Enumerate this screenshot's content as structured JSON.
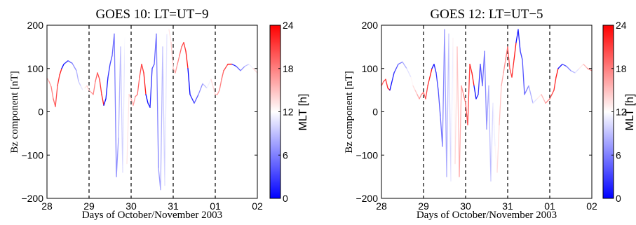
{
  "colors": {
    "low": "#0000ff",
    "mid": "#ffffff",
    "high": "#ff0000",
    "axis": "#000000"
  },
  "chart_data": [
    {
      "type": "line",
      "title": "GOES 10: LT=UT−9",
      "xlabel": "Days of October/November 2003",
      "ylabel": "Bz component [nT]",
      "xlim": [
        "2003-10-28",
        "2003-11-02"
      ],
      "ylim": [
        -200,
        200
      ],
      "xticks": [
        "28",
        "29",
        "30",
        "31",
        "01",
        "02"
      ],
      "yticks": [
        "−200",
        "−100",
        "0",
        "100",
        "200"
      ],
      "ytick_values": [
        -200,
        -100,
        0,
        100,
        200
      ],
      "vlines_dashed": [
        "2003-10-29",
        "2003-10-30",
        "2003-10-31",
        "2003-11-01"
      ],
      "color_by": "MLT",
      "colorbar": {
        "label": "MLT [h]",
        "range": [
          0,
          24
        ],
        "ticks": [
          "0",
          "6",
          "12",
          "18",
          "24"
        ],
        "tick_values": [
          0,
          6,
          12,
          18,
          24
        ]
      },
      "lt_offset_hours": -9,
      "grid": false,
      "series": [
        {
          "x_days": [
            0,
            0.05,
            0.1,
            0.15,
            0.2,
            0.25,
            0.3,
            0.35,
            0.4,
            0.5,
            0.6,
            0.7,
            0.75,
            0.8,
            0.85,
            0.9,
            0.95,
            1.0,
            1.05,
            1.1,
            1.15,
            1.2,
            1.25,
            1.3,
            1.35,
            1.4,
            1.45,
            1.5,
            1.55,
            1.6,
            1.65,
            1.7,
            1.75,
            1.8,
            1.85,
            1.9,
            1.95,
            2.0,
            2.05,
            2.1,
            2.15,
            2.2,
            2.25,
            2.3,
            2.35,
            2.4,
            2.45,
            2.5,
            2.55,
            2.6,
            2.65,
            2.7,
            2.75,
            2.8,
            2.85,
            2.9,
            2.95,
            3.0,
            3.05,
            3.1,
            3.15,
            3.2,
            3.25,
            3.3,
            3.35,
            3.4,
            3.5,
            3.6,
            3.7,
            3.8,
            3.9,
            4.0,
            4.05,
            4.1,
            4.15,
            4.2,
            4.3,
            4.4,
            4.5,
            4.6,
            4.7,
            4.8,
            4.9,
            5.0
          ],
          "y": [
            78,
            70,
            58,
            30,
            12,
            60,
            85,
            100,
            110,
            118,
            112,
            95,
            70,
            60,
            50,
            55,
            60,
            50,
            45,
            40,
            70,
            90,
            75,
            40,
            15,
            30,
            80,
            110,
            130,
            180,
            -150,
            -60,
            150,
            -140,
            170,
            -120,
            40,
            30,
            15,
            35,
            40,
            80,
            110,
            90,
            40,
            20,
            10,
            100,
            110,
            180,
            -130,
            -180,
            150,
            -170,
            180,
            190,
            160,
            100,
            90,
            110,
            130,
            150,
            160,
            140,
            100,
            40,
            20,
            40,
            65,
            55,
            75,
            40,
            40,
            50,
            75,
            95,
            110,
            110,
            105,
            95,
            105,
            110,
            100,
            90
          ]
        }
      ]
    },
    {
      "type": "line",
      "title": "GOES 12: LT=UT−5",
      "xlabel": "Days of October/November 2003",
      "ylabel": "Bz component [nT]",
      "xlim": [
        "2003-10-28",
        "2003-11-02"
      ],
      "ylim": [
        -200,
        200
      ],
      "xticks": [
        "28",
        "29",
        "30",
        "31",
        "01",
        "02"
      ],
      "yticks": [
        "−200",
        "−100",
        "0",
        "100",
        "200"
      ],
      "ytick_values": [
        -200,
        -100,
        0,
        100,
        200
      ],
      "vlines_dashed": [
        "2003-10-29",
        "2003-10-30",
        "2003-10-31",
        "2003-11-01"
      ],
      "color_by": "MLT",
      "colorbar": {
        "label": "MLT [h]",
        "range": [
          0,
          24
        ],
        "ticks": [
          "0",
          "6",
          "12",
          "18",
          "24"
        ],
        "tick_values": [
          0,
          6,
          12,
          18,
          24
        ]
      },
      "lt_offset_hours": -5,
      "grid": false,
      "series": [
        {
          "x_days": [
            0,
            0.05,
            0.1,
            0.15,
            0.2,
            0.25,
            0.3,
            0.35,
            0.4,
            0.5,
            0.6,
            0.7,
            0.75,
            0.8,
            0.85,
            0.9,
            0.95,
            1.0,
            1.05,
            1.1,
            1.15,
            1.2,
            1.25,
            1.3,
            1.35,
            1.4,
            1.45,
            1.5,
            1.55,
            1.6,
            1.65,
            1.7,
            1.75,
            1.8,
            1.85,
            1.9,
            1.95,
            2.0,
            2.05,
            2.1,
            2.15,
            2.2,
            2.25,
            2.3,
            2.35,
            2.4,
            2.45,
            2.5,
            2.55,
            2.6,
            2.65,
            2.7,
            2.75,
            2.8,
            2.85,
            2.9,
            2.95,
            3.0,
            3.05,
            3.1,
            3.15,
            3.2,
            3.25,
            3.3,
            3.35,
            3.4,
            3.5,
            3.6,
            3.7,
            3.8,
            3.9,
            4.0,
            4.05,
            4.1,
            4.15,
            4.2,
            4.3,
            4.4,
            4.5,
            4.6,
            4.7,
            4.8,
            4.9,
            5.0
          ],
          "y": [
            60,
            70,
            75,
            55,
            50,
            70,
            90,
            100,
            110,
            115,
            100,
            80,
            60,
            50,
            40,
            30,
            40,
            45,
            30,
            60,
            80,
            100,
            110,
            90,
            50,
            -10,
            -80,
            190,
            -150,
            180,
            -160,
            170,
            -120,
            150,
            -150,
            60,
            40,
            20,
            -30,
            110,
            90,
            60,
            30,
            40,
            110,
            60,
            140,
            -40,
            60,
            -160,
            20,
            -80,
            -140,
            -30,
            60,
            90,
            120,
            150,
            100,
            80,
            120,
            160,
            190,
            140,
            120,
            40,
            60,
            20,
            30,
            40,
            20,
            30,
            40,
            50,
            80,
            100,
            110,
            105,
            95,
            90,
            100,
            110,
            100,
            95
          ]
        }
      ]
    }
  ]
}
